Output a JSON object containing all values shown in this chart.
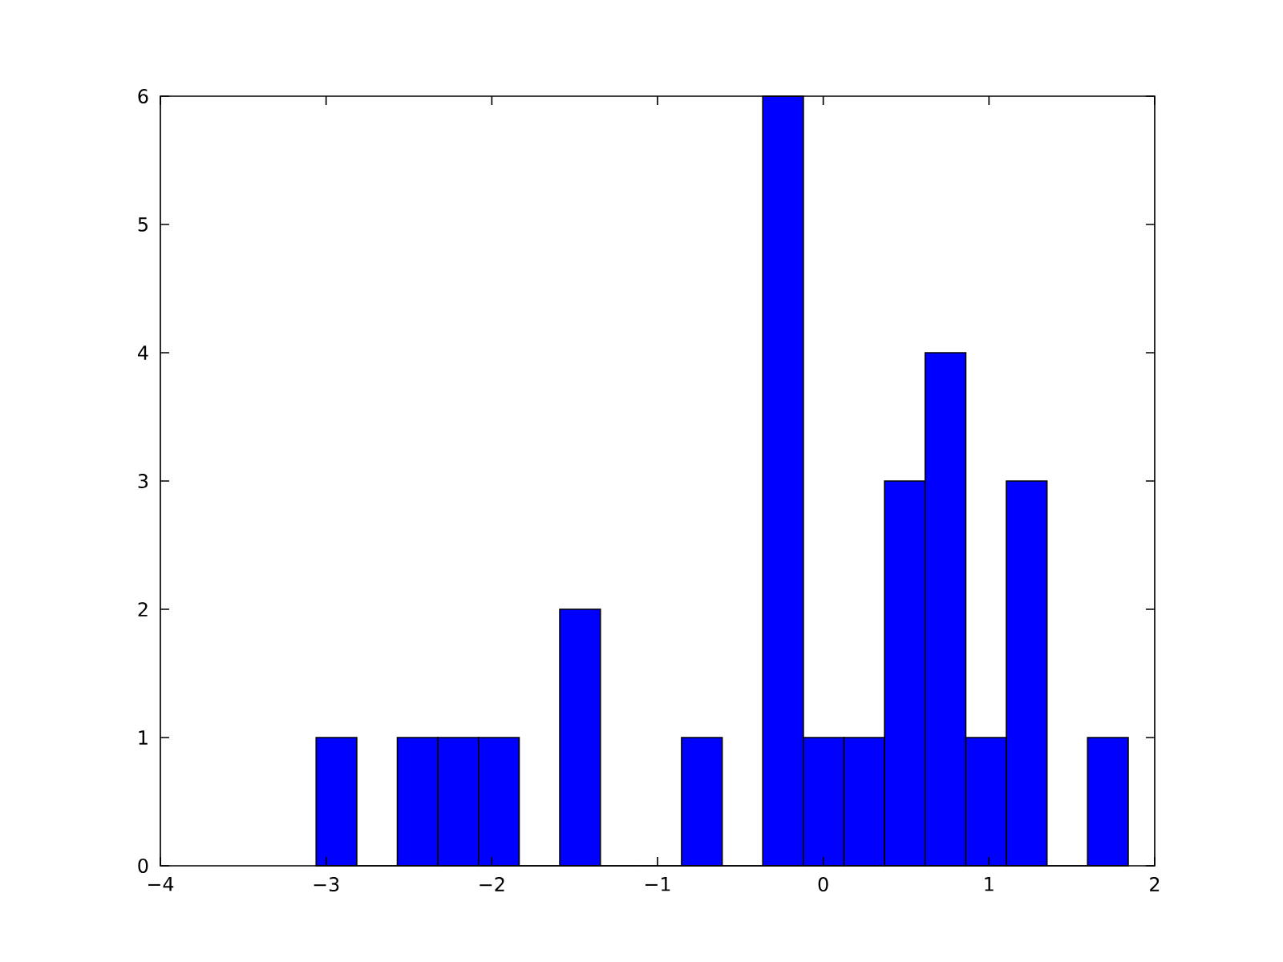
{
  "chart_data": {
    "type": "histogram",
    "bins": [
      -3.06,
      -2.815,
      -2.57,
      -2.325,
      -2.08,
      -1.835,
      -1.59,
      -1.345,
      -1.1,
      -0.855,
      -0.61,
      -0.365,
      -0.12,
      0.125,
      0.37,
      0.615,
      0.86,
      1.105,
      1.35,
      1.595,
      1.84
    ],
    "values": [
      1,
      0,
      1,
      1,
      1,
      0,
      2,
      0,
      0,
      1,
      0,
      6,
      1,
      1,
      3,
      4,
      1,
      3,
      0,
      1
    ],
    "color": "#0000ff",
    "xlim": [
      -4,
      2
    ],
    "ylim": [
      0,
      6
    ],
    "xticks": [
      {
        "value": -4,
        "label": "−4"
      },
      {
        "value": -3,
        "label": "−3"
      },
      {
        "value": -2,
        "label": "−2"
      },
      {
        "value": -1,
        "label": "−1"
      },
      0,
      1,
      2
    ],
    "yticks": [
      0,
      1,
      2,
      3,
      4,
      5,
      6
    ]
  }
}
